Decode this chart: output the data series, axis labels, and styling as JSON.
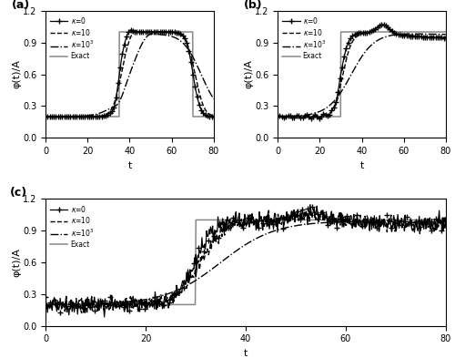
{
  "xlabel": "t",
  "ylabel": "φ(t)/A",
  "xlim": [
    0,
    80
  ],
  "ylim": [
    0.0,
    1.2
  ],
  "yticks": [
    0.0,
    0.3,
    0.6,
    0.9,
    1.2
  ],
  "xticks": [
    0,
    20,
    40,
    60,
    80
  ],
  "low": 0.2,
  "high": 1.0,
  "panel_a_exact_up": 35,
  "panel_a_exact_down": 70,
  "panel_b_exact_up": 30,
  "panel_c_exact_up": 30,
  "color_exact": "#888888",
  "color_k0": "#000000",
  "color_k10": "#000000",
  "color_k1000": "#000000",
  "lw": 1.0,
  "marker_size": 4,
  "n_sparse": 82
}
